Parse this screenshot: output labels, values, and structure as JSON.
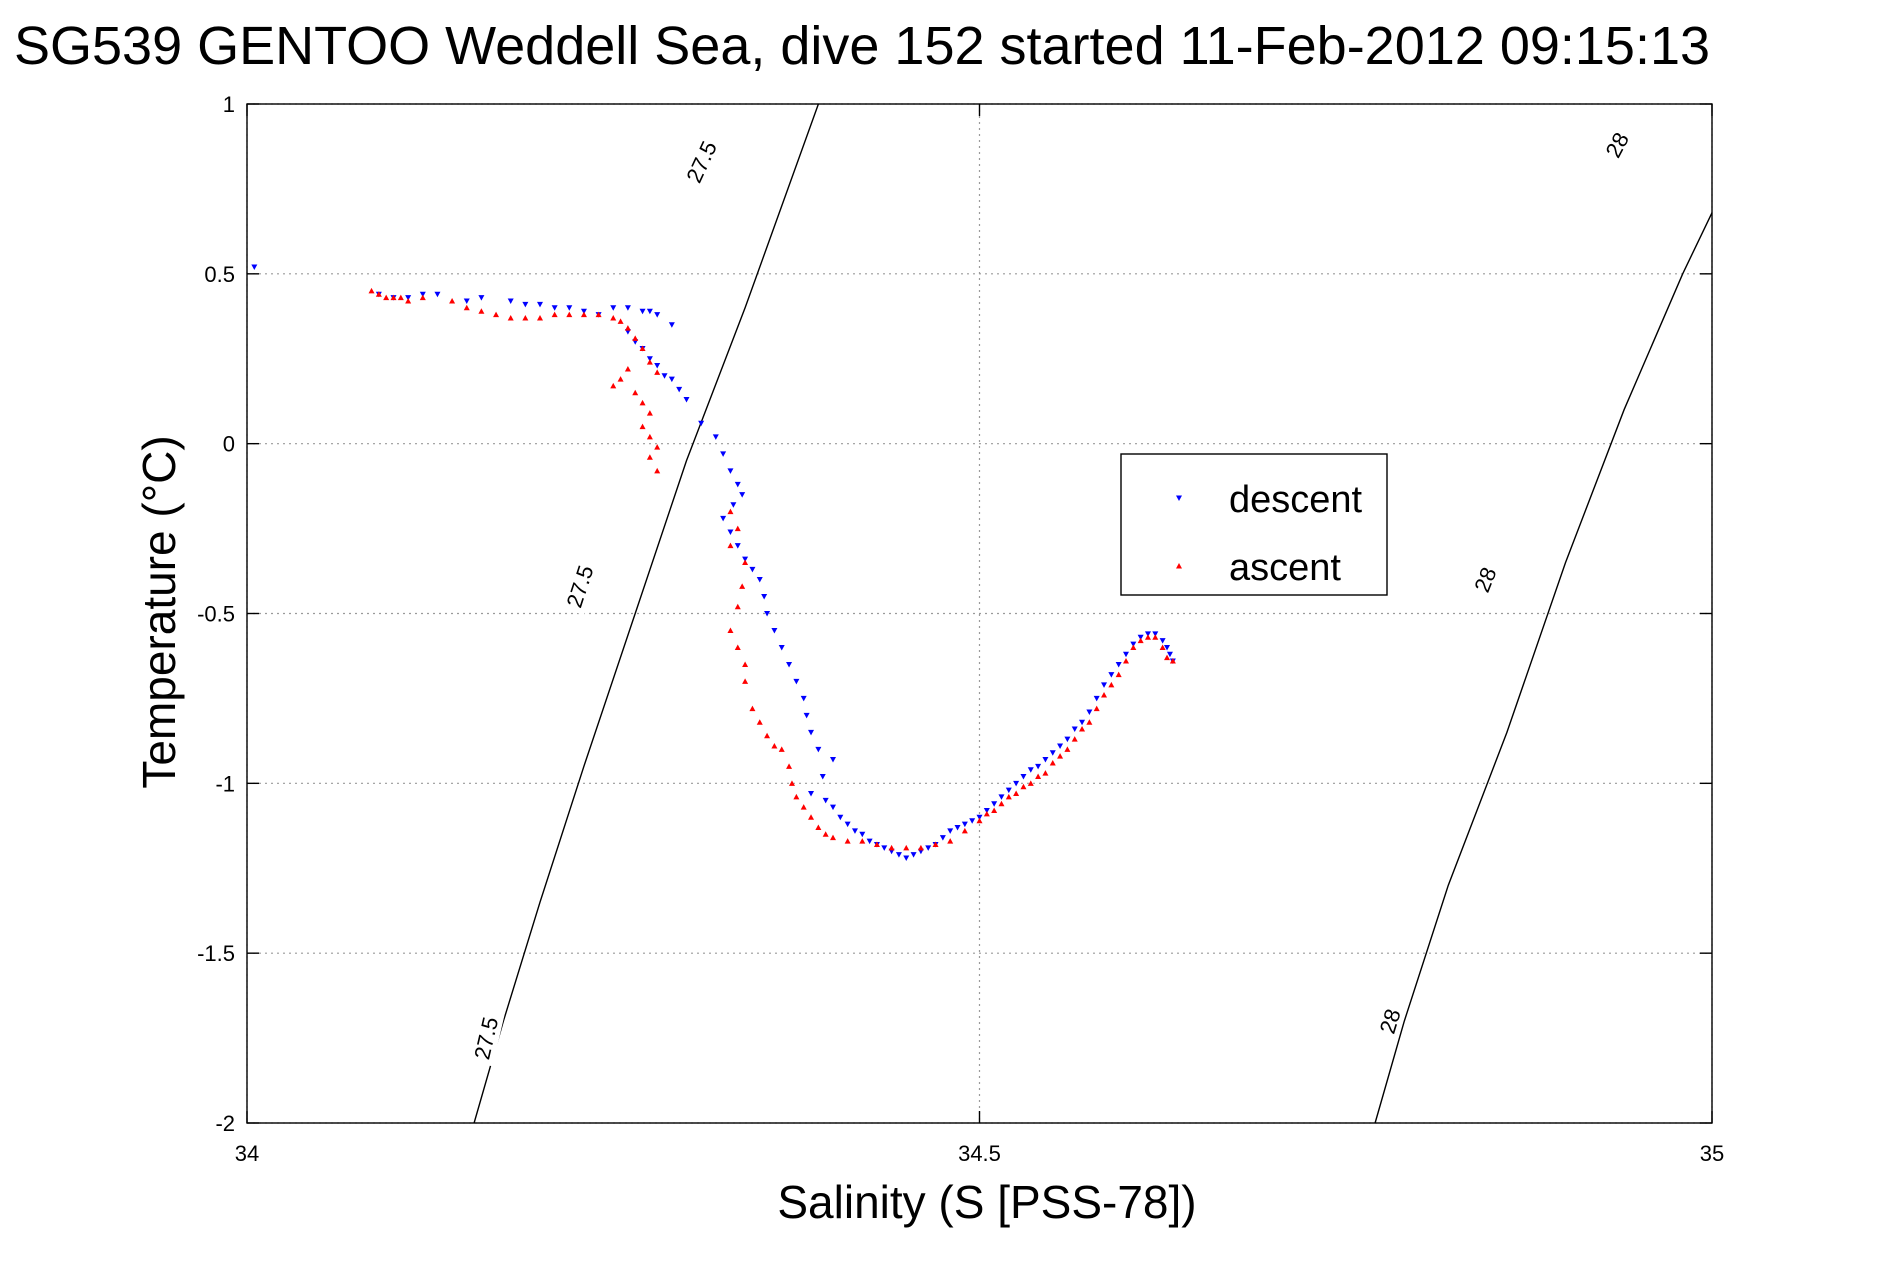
{
  "chart_data": {
    "type": "scatter",
    "title": "SG539 GENTOO Weddell Sea, dive 152 started 11-Feb-2012 09:15:13",
    "xlabel": "Salinity (S [PSS-78])",
    "ylabel": "Temperature (°C)",
    "xlim": [
      34,
      35
    ],
    "ylim": [
      -2,
      1
    ],
    "grid": true,
    "legend_position": "right-center",
    "x_ticks": [
      "34",
      "34.5",
      "35"
    ],
    "y_ticks": [
      "1",
      "0.5",
      "0",
      "-0.5",
      "-1",
      "-1.5",
      "-2"
    ],
    "contours": [
      {
        "label": "27.5",
        "points": [
          [
            34.155,
            -2.0
          ],
          [
            34.175,
            -1.7
          ],
          [
            34.2,
            -1.35
          ],
          [
            34.23,
            -0.95
          ],
          [
            34.265,
            -0.5
          ],
          [
            34.3,
            -0.05
          ],
          [
            34.34,
            0.4
          ],
          [
            34.39,
            1.0
          ]
        ]
      },
      {
        "label": "28",
        "points": [
          [
            34.77,
            -2.0
          ],
          [
            34.79,
            -1.7
          ],
          [
            34.82,
            -1.3
          ],
          [
            34.86,
            -0.85
          ],
          [
            34.9,
            -0.35
          ],
          [
            34.94,
            0.1
          ],
          [
            34.98,
            0.5
          ],
          [
            35.03,
            0.95
          ],
          [
            35.05,
            1.0
          ]
        ]
      }
    ],
    "contour_labels": [
      {
        "text": "27.5",
        "x": 34.163,
        "y": -1.75,
        "rotation": -77
      },
      {
        "text": "27.5",
        "x": 34.227,
        "y": -0.42,
        "rotation": -72
      },
      {
        "text": "27.5",
        "x": 34.31,
        "y": 0.83,
        "rotation": -65
      },
      {
        "text": "28",
        "x": 34.78,
        "y": -1.7,
        "rotation": -73
      },
      {
        "text": "28",
        "x": 34.845,
        "y": -0.4,
        "rotation": -68
      },
      {
        "text": "28",
        "x": 34.935,
        "y": 0.88,
        "rotation": -62
      }
    ],
    "series": [
      {
        "name": "descent",
        "color": "#0000ff",
        "marker": "triangle-down",
        "points": [
          [
            34.005,
            0.52
          ],
          [
            34.09,
            0.44
          ],
          [
            34.1,
            0.43
          ],
          [
            34.11,
            0.43
          ],
          [
            34.12,
            0.44
          ],
          [
            34.13,
            0.44
          ],
          [
            34.15,
            0.42
          ],
          [
            34.16,
            0.43
          ],
          [
            34.18,
            0.42
          ],
          [
            34.19,
            0.41
          ],
          [
            34.2,
            0.41
          ],
          [
            34.21,
            0.4
          ],
          [
            34.22,
            0.4
          ],
          [
            34.23,
            0.39
          ],
          [
            34.24,
            0.38
          ],
          [
            34.25,
            0.4
          ],
          [
            34.26,
            0.4
          ],
          [
            34.27,
            0.39
          ],
          [
            34.275,
            0.39
          ],
          [
            34.28,
            0.38
          ],
          [
            34.29,
            0.35
          ],
          [
            34.26,
            0.33
          ],
          [
            34.265,
            0.3
          ],
          [
            34.27,
            0.28
          ],
          [
            34.275,
            0.25
          ],
          [
            34.28,
            0.23
          ],
          [
            34.285,
            0.2
          ],
          [
            34.29,
            0.19
          ],
          [
            34.295,
            0.16
          ],
          [
            34.3,
            0.13
          ],
          [
            34.31,
            0.06
          ],
          [
            34.32,
            0.02
          ],
          [
            34.325,
            -0.03
          ],
          [
            34.33,
            -0.08
          ],
          [
            34.335,
            -0.12
          ],
          [
            34.338,
            -0.15
          ],
          [
            34.332,
            -0.18
          ],
          [
            34.325,
            -0.22
          ],
          [
            34.33,
            -0.26
          ],
          [
            34.335,
            -0.3
          ],
          [
            34.34,
            -0.34
          ],
          [
            34.345,
            -0.37
          ],
          [
            34.35,
            -0.4
          ],
          [
            34.353,
            -0.45
          ],
          [
            34.355,
            -0.5
          ],
          [
            34.36,
            -0.55
          ],
          [
            34.365,
            -0.6
          ],
          [
            34.37,
            -0.65
          ],
          [
            34.375,
            -0.7
          ],
          [
            34.38,
            -0.75
          ],
          [
            34.382,
            -0.8
          ],
          [
            34.385,
            -0.85
          ],
          [
            34.39,
            -0.9
          ],
          [
            34.4,
            -0.93
          ],
          [
            34.393,
            -0.98
          ],
          [
            34.385,
            -1.03
          ],
          [
            34.395,
            -1.05
          ],
          [
            34.4,
            -1.07
          ],
          [
            34.405,
            -1.1
          ],
          [
            34.41,
            -1.12
          ],
          [
            34.415,
            -1.14
          ],
          [
            34.42,
            -1.15
          ],
          [
            34.425,
            -1.17
          ],
          [
            34.43,
            -1.18
          ],
          [
            34.435,
            -1.19
          ],
          [
            34.44,
            -1.2
          ],
          [
            34.445,
            -1.21
          ],
          [
            34.45,
            -1.22
          ],
          [
            34.455,
            -1.21
          ],
          [
            34.46,
            -1.2
          ],
          [
            34.465,
            -1.19
          ],
          [
            34.47,
            -1.18
          ],
          [
            34.475,
            -1.16
          ],
          [
            34.48,
            -1.14
          ],
          [
            34.485,
            -1.13
          ],
          [
            34.49,
            -1.12
          ],
          [
            34.495,
            -1.11
          ],
          [
            34.5,
            -1.1
          ],
          [
            34.505,
            -1.08
          ],
          [
            34.51,
            -1.06
          ],
          [
            34.515,
            -1.04
          ],
          [
            34.52,
            -1.02
          ],
          [
            34.525,
            -1.0
          ],
          [
            34.53,
            -0.98
          ],
          [
            34.535,
            -0.96
          ],
          [
            34.54,
            -0.95
          ],
          [
            34.545,
            -0.93
          ],
          [
            34.55,
            -0.91
          ],
          [
            34.555,
            -0.89
          ],
          [
            34.56,
            -0.87
          ],
          [
            34.565,
            -0.84
          ],
          [
            34.57,
            -0.82
          ],
          [
            34.575,
            -0.79
          ],
          [
            34.58,
            -0.75
          ],
          [
            34.585,
            -0.71
          ],
          [
            34.59,
            -0.68
          ],
          [
            34.595,
            -0.65
          ],
          [
            34.6,
            -0.62
          ],
          [
            34.605,
            -0.59
          ],
          [
            34.61,
            -0.57
          ],
          [
            34.615,
            -0.56
          ],
          [
            34.62,
            -0.56
          ],
          [
            34.625,
            -0.58
          ],
          [
            34.628,
            -0.6
          ],
          [
            34.63,
            -0.62
          ],
          [
            34.632,
            -0.64
          ]
        ]
      },
      {
        "name": "ascent",
        "color": "#ff0000",
        "marker": "triangle-up",
        "points": [
          [
            34.085,
            0.45
          ],
          [
            34.09,
            0.44
          ],
          [
            34.095,
            0.43
          ],
          [
            34.1,
            0.43
          ],
          [
            34.105,
            0.43
          ],
          [
            34.11,
            0.42
          ],
          [
            34.12,
            0.43
          ],
          [
            34.14,
            0.42
          ],
          [
            34.15,
            0.4
          ],
          [
            34.16,
            0.39
          ],
          [
            34.17,
            0.38
          ],
          [
            34.18,
            0.37
          ],
          [
            34.19,
            0.37
          ],
          [
            34.2,
            0.37
          ],
          [
            34.21,
            0.38
          ],
          [
            34.22,
            0.38
          ],
          [
            34.23,
            0.38
          ],
          [
            34.24,
            0.38
          ],
          [
            34.25,
            0.37
          ],
          [
            34.255,
            0.36
          ],
          [
            34.26,
            0.34
          ],
          [
            34.265,
            0.31
          ],
          [
            34.27,
            0.28
          ],
          [
            34.275,
            0.24
          ],
          [
            34.28,
            0.21
          ],
          [
            34.26,
            0.22
          ],
          [
            34.25,
            0.17
          ],
          [
            34.255,
            0.19
          ],
          [
            34.265,
            0.15
          ],
          [
            34.27,
            0.12
          ],
          [
            34.275,
            0.09
          ],
          [
            34.27,
            0.05
          ],
          [
            34.275,
            0.02
          ],
          [
            34.28,
            -0.01
          ],
          [
            34.275,
            -0.04
          ],
          [
            34.28,
            -0.08
          ],
          [
            34.33,
            -0.2
          ],
          [
            34.335,
            -0.25
          ],
          [
            34.33,
            -0.3
          ],
          [
            34.34,
            -0.35
          ],
          [
            34.338,
            -0.42
          ],
          [
            34.335,
            -0.48
          ],
          [
            34.33,
            -0.55
          ],
          [
            34.335,
            -0.6
          ],
          [
            34.34,
            -0.65
          ],
          [
            34.34,
            -0.7
          ],
          [
            34.345,
            -0.78
          ],
          [
            34.35,
            -0.82
          ],
          [
            34.355,
            -0.86
          ],
          [
            34.36,
            -0.89
          ],
          [
            34.365,
            -0.9
          ],
          [
            34.37,
            -0.95
          ],
          [
            34.372,
            -1.0
          ],
          [
            34.375,
            -1.04
          ],
          [
            34.38,
            -1.07
          ],
          [
            34.385,
            -1.1
          ],
          [
            34.39,
            -1.13
          ],
          [
            34.395,
            -1.15
          ],
          [
            34.4,
            -1.16
          ],
          [
            34.41,
            -1.17
          ],
          [
            34.42,
            -1.17
          ],
          [
            34.43,
            -1.18
          ],
          [
            34.44,
            -1.19
          ],
          [
            34.45,
            -1.19
          ],
          [
            34.46,
            -1.19
          ],
          [
            34.47,
            -1.18
          ],
          [
            34.48,
            -1.17
          ],
          [
            34.49,
            -1.14
          ],
          [
            34.5,
            -1.11
          ],
          [
            34.505,
            -1.09
          ],
          [
            34.51,
            -1.08
          ],
          [
            34.515,
            -1.06
          ],
          [
            34.52,
            -1.04
          ],
          [
            34.525,
            -1.03
          ],
          [
            34.53,
            -1.01
          ],
          [
            34.535,
            -1.0
          ],
          [
            34.54,
            -0.98
          ],
          [
            34.545,
            -0.97
          ],
          [
            34.55,
            -0.94
          ],
          [
            34.555,
            -0.92
          ],
          [
            34.56,
            -0.9
          ],
          [
            34.565,
            -0.87
          ],
          [
            34.57,
            -0.84
          ],
          [
            34.575,
            -0.82
          ],
          [
            34.58,
            -0.78
          ],
          [
            34.585,
            -0.74
          ],
          [
            34.59,
            -0.71
          ],
          [
            34.595,
            -0.68
          ],
          [
            34.6,
            -0.64
          ],
          [
            34.605,
            -0.6
          ],
          [
            34.61,
            -0.58
          ],
          [
            34.615,
            -0.57
          ],
          [
            34.62,
            -0.57
          ],
          [
            34.625,
            -0.6
          ],
          [
            34.628,
            -0.63
          ],
          [
            34.632,
            -0.64
          ]
        ]
      }
    ]
  }
}
